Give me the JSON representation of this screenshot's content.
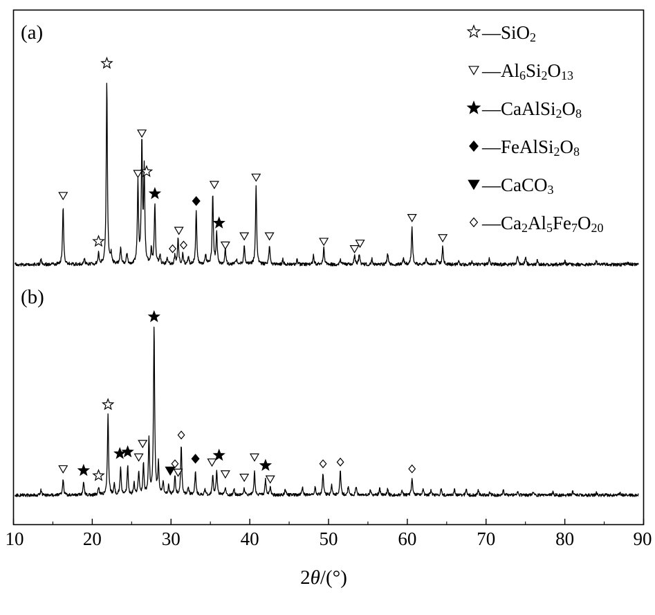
{
  "chart_data": {
    "type": "line",
    "xlabel_parts": [
      "2",
      "θ",
      "/(°)"
    ],
    "xlim": [
      10,
      90
    ],
    "xticks": [
      10,
      20,
      30,
      40,
      50,
      60,
      70,
      80,
      90
    ],
    "ylabel": "",
    "yticks_shown": false,
    "grid": false,
    "legend_position": "top-right",
    "legend": [
      {
        "id": "sio2",
        "marker": "open-star",
        "dash": "—",
        "parts": [
          [
            "Si",
            false
          ],
          [
            "O",
            false
          ],
          [
            "2",
            true
          ]
        ]
      },
      {
        "id": "al6si2o13",
        "marker": "open-triangle-down",
        "dash": "—",
        "parts": [
          [
            "Al",
            false
          ],
          [
            "6",
            true
          ],
          [
            "Si",
            false
          ],
          [
            "2",
            true
          ],
          [
            "O",
            false
          ],
          [
            "13",
            true
          ]
        ]
      },
      {
        "id": "caalsi2o8",
        "marker": "filled-star",
        "dash": "—",
        "parts": [
          [
            "CaAlSi",
            false
          ],
          [
            "2",
            true
          ],
          [
            "O",
            false
          ],
          [
            "8",
            true
          ]
        ]
      },
      {
        "id": "fealsi2o8",
        "marker": "filled-diamond",
        "dash": "—",
        "parts": [
          [
            "FeAlSi",
            false
          ],
          [
            "2",
            true
          ],
          [
            "O",
            false
          ],
          [
            "8",
            true
          ]
        ]
      },
      {
        "id": "caco3",
        "marker": "filled-triangle-down",
        "dash": "—",
        "parts": [
          [
            "CaCO",
            false
          ],
          [
            "3",
            true
          ]
        ]
      },
      {
        "id": "ca2al5fe7o20",
        "marker": "open-diamond",
        "dash": "—",
        "parts": [
          [
            "Ca",
            false
          ],
          [
            "2",
            true
          ],
          [
            "Al",
            false
          ],
          [
            "5",
            true
          ],
          [
            "Fe",
            false
          ],
          [
            "7",
            true
          ],
          [
            "O",
            false
          ],
          [
            "20",
            true
          ]
        ]
      }
    ],
    "series": [
      {
        "panel": "(a)",
        "peaks": [
          {
            "x": 13.5,
            "h": 0.03
          },
          {
            "x": 16.3,
            "h": 0.32
          },
          {
            "x": 19.0,
            "h": 0.03
          },
          {
            "x": 20.8,
            "h": 0.06
          },
          {
            "x": 21.85,
            "h": 1.0
          },
          {
            "x": 22.4,
            "h": 0.05
          },
          {
            "x": 23.6,
            "h": 0.09
          },
          {
            "x": 24.4,
            "h": 0.06
          },
          {
            "x": 25.8,
            "h": 0.44
          },
          {
            "x": 26.3,
            "h": 0.66
          },
          {
            "x": 26.6,
            "h": 0.5
          },
          {
            "x": 27.5,
            "h": 0.08
          },
          {
            "x": 27.95,
            "h": 0.33
          },
          {
            "x": 28.6,
            "h": 0.05
          },
          {
            "x": 29.5,
            "h": 0.04
          },
          {
            "x": 30.5,
            "h": 0.05
          },
          {
            "x": 30.9,
            "h": 0.14
          },
          {
            "x": 31.5,
            "h": 0.06
          },
          {
            "x": 32.2,
            "h": 0.04
          },
          {
            "x": 33.2,
            "h": 0.29
          },
          {
            "x": 34.4,
            "h": 0.05
          },
          {
            "x": 35.3,
            "h": 0.38
          },
          {
            "x": 35.8,
            "h": 0.17
          },
          {
            "x": 36.9,
            "h": 0.08
          },
          {
            "x": 38.3,
            "h": 0.03
          },
          {
            "x": 39.3,
            "h": 0.1
          },
          {
            "x": 40.8,
            "h": 0.42
          },
          {
            "x": 42.5,
            "h": 0.1
          },
          {
            "x": 44.2,
            "h": 0.03
          },
          {
            "x": 46.0,
            "h": 0.03
          },
          {
            "x": 48.1,
            "h": 0.05
          },
          {
            "x": 49.4,
            "h": 0.09
          },
          {
            "x": 51.5,
            "h": 0.03
          },
          {
            "x": 53.3,
            "h": 0.05
          },
          {
            "x": 53.9,
            "h": 0.06
          },
          {
            "x": 55.5,
            "h": 0.03
          },
          {
            "x": 57.5,
            "h": 0.06
          },
          {
            "x": 59.5,
            "h": 0.03
          },
          {
            "x": 60.6,
            "h": 0.2
          },
          {
            "x": 62.4,
            "h": 0.03
          },
          {
            "x": 63.8,
            "h": 0.03
          },
          {
            "x": 64.5,
            "h": 0.1
          },
          {
            "x": 66.5,
            "h": 0.02
          },
          {
            "x": 68.2,
            "h": 0.02
          },
          {
            "x": 70.4,
            "h": 0.03
          },
          {
            "x": 74.0,
            "h": 0.05
          },
          {
            "x": 75.0,
            "h": 0.04
          },
          {
            "x": 76.5,
            "h": 0.02
          },
          {
            "x": 80.0,
            "h": 0.02
          },
          {
            "x": 84.0,
            "h": 0.02
          },
          {
            "x": 88.0,
            "h": 0.01
          }
        ],
        "markers": [
          {
            "x": 21.85,
            "h": 1.1,
            "phase": "sio2"
          },
          {
            "x": 20.8,
            "h": 0.13,
            "phase": "sio2"
          },
          {
            "x": 26.9,
            "h": 0.51,
            "phase": "sio2"
          },
          {
            "x": 16.3,
            "h": 0.38,
            "phase": "al6si2o13"
          },
          {
            "x": 25.8,
            "h": 0.5,
            "phase": "al6si2o13"
          },
          {
            "x": 26.3,
            "h": 0.72,
            "phase": "al6si2o13"
          },
          {
            "x": 31.0,
            "h": 0.19,
            "phase": "al6si2o13"
          },
          {
            "x": 35.5,
            "h": 0.44,
            "phase": "al6si2o13"
          },
          {
            "x": 36.9,
            "h": 0.11,
            "phase": "al6si2o13"
          },
          {
            "x": 39.3,
            "h": 0.16,
            "phase": "al6si2o13"
          },
          {
            "x": 40.8,
            "h": 0.48,
            "phase": "al6si2o13"
          },
          {
            "x": 42.5,
            "h": 0.16,
            "phase": "al6si2o13"
          },
          {
            "x": 49.4,
            "h": 0.13,
            "phase": "al6si2o13"
          },
          {
            "x": 53.3,
            "h": 0.09,
            "phase": "al6si2o13"
          },
          {
            "x": 54.0,
            "h": 0.12,
            "phase": "al6si2o13"
          },
          {
            "x": 60.6,
            "h": 0.26,
            "phase": "al6si2o13"
          },
          {
            "x": 64.5,
            "h": 0.15,
            "phase": "al6si2o13"
          },
          {
            "x": 27.95,
            "h": 0.39,
            "phase": "caalsi2o8"
          },
          {
            "x": 36.1,
            "h": 0.23,
            "phase": "caalsi2o8"
          },
          {
            "x": 33.2,
            "h": 0.35,
            "phase": "fealsi2o8"
          },
          {
            "x": 30.2,
            "h": 0.09,
            "phase": "ca2al5fe7o20"
          },
          {
            "x": 31.6,
            "h": 0.11,
            "phase": "ca2al5fe7o20"
          }
        ]
      },
      {
        "panel": "(b)",
        "peaks": [
          {
            "x": 13.5,
            "h": 0.03
          },
          {
            "x": 16.3,
            "h": 0.1
          },
          {
            "x": 18.9,
            "h": 0.08
          },
          {
            "x": 20.8,
            "h": 0.05
          },
          {
            "x": 22.0,
            "h": 0.48
          },
          {
            "x": 22.8,
            "h": 0.06
          },
          {
            "x": 23.6,
            "h": 0.17
          },
          {
            "x": 24.5,
            "h": 0.17
          },
          {
            "x": 25.3,
            "h": 0.07
          },
          {
            "x": 25.9,
            "h": 0.14
          },
          {
            "x": 26.5,
            "h": 0.19
          },
          {
            "x": 27.2,
            "h": 0.33
          },
          {
            "x": 27.85,
            "h": 1.0
          },
          {
            "x": 28.4,
            "h": 0.18
          },
          {
            "x": 29.0,
            "h": 0.08
          },
          {
            "x": 29.7,
            "h": 0.06
          },
          {
            "x": 30.5,
            "h": 0.12
          },
          {
            "x": 31.3,
            "h": 0.3
          },
          {
            "x": 32.2,
            "h": 0.05
          },
          {
            "x": 33.1,
            "h": 0.14
          },
          {
            "x": 34.3,
            "h": 0.04
          },
          {
            "x": 35.3,
            "h": 0.12
          },
          {
            "x": 35.8,
            "h": 0.15
          },
          {
            "x": 36.9,
            "h": 0.05
          },
          {
            "x": 38.0,
            "h": 0.04
          },
          {
            "x": 39.3,
            "h": 0.04
          },
          {
            "x": 40.6,
            "h": 0.14
          },
          {
            "x": 42.0,
            "h": 0.09
          },
          {
            "x": 42.6,
            "h": 0.05
          },
          {
            "x": 44.5,
            "h": 0.04
          },
          {
            "x": 46.7,
            "h": 0.05
          },
          {
            "x": 48.3,
            "h": 0.05
          },
          {
            "x": 49.3,
            "h": 0.13
          },
          {
            "x": 50.4,
            "h": 0.06
          },
          {
            "x": 51.5,
            "h": 0.14
          },
          {
            "x": 52.5,
            "h": 0.05
          },
          {
            "x": 53.5,
            "h": 0.05
          },
          {
            "x": 55.3,
            "h": 0.03
          },
          {
            "x": 56.5,
            "h": 0.04
          },
          {
            "x": 57.5,
            "h": 0.04
          },
          {
            "x": 59.3,
            "h": 0.03
          },
          {
            "x": 60.6,
            "h": 0.1
          },
          {
            "x": 62.0,
            "h": 0.04
          },
          {
            "x": 63.0,
            "h": 0.03
          },
          {
            "x": 64.3,
            "h": 0.04
          },
          {
            "x": 66.0,
            "h": 0.03
          },
          {
            "x": 67.5,
            "h": 0.03
          },
          {
            "x": 69.0,
            "h": 0.03
          },
          {
            "x": 70.5,
            "h": 0.02
          },
          {
            "x": 72.2,
            "h": 0.03
          },
          {
            "x": 74.0,
            "h": 0.02
          },
          {
            "x": 76.0,
            "h": 0.02
          },
          {
            "x": 78.5,
            "h": 0.02
          },
          {
            "x": 81.0,
            "h": 0.02
          },
          {
            "x": 84.0,
            "h": 0.015
          },
          {
            "x": 87.0,
            "h": 0.015
          }
        ],
        "markers": [
          {
            "x": 27.85,
            "h": 1.06,
            "phase": "caalsi2o8"
          },
          {
            "x": 18.9,
            "h": 0.15,
            "phase": "caalsi2o8"
          },
          {
            "x": 23.5,
            "h": 0.25,
            "phase": "caalsi2o8"
          },
          {
            "x": 24.5,
            "h": 0.26,
            "phase": "caalsi2o8"
          },
          {
            "x": 36.1,
            "h": 0.24,
            "phase": "caalsi2o8"
          },
          {
            "x": 42.0,
            "h": 0.18,
            "phase": "caalsi2o8"
          },
          {
            "x": 22.0,
            "h": 0.54,
            "phase": "sio2"
          },
          {
            "x": 20.8,
            "h": 0.12,
            "phase": "sio2"
          },
          {
            "x": 16.3,
            "h": 0.16,
            "phase": "al6si2o13"
          },
          {
            "x": 25.9,
            "h": 0.23,
            "phase": "al6si2o13"
          },
          {
            "x": 26.4,
            "h": 0.31,
            "phase": "al6si2o13"
          },
          {
            "x": 30.9,
            "h": 0.14,
            "phase": "al6si2o13"
          },
          {
            "x": 35.2,
            "h": 0.2,
            "phase": "al6si2o13"
          },
          {
            "x": 36.9,
            "h": 0.13,
            "phase": "al6si2o13"
          },
          {
            "x": 39.3,
            "h": 0.11,
            "phase": "al6si2o13"
          },
          {
            "x": 40.6,
            "h": 0.23,
            "phase": "al6si2o13"
          },
          {
            "x": 42.6,
            "h": 0.1,
            "phase": "al6si2o13"
          },
          {
            "x": 29.9,
            "h": 0.15,
            "phase": "caco3"
          },
          {
            "x": 33.1,
            "h": 0.22,
            "phase": "fealsi2o8"
          },
          {
            "x": 30.5,
            "h": 0.19,
            "phase": "ca2al5fe7o20"
          },
          {
            "x": 31.3,
            "h": 0.36,
            "phase": "ca2al5fe7o20"
          },
          {
            "x": 49.3,
            "h": 0.19,
            "phase": "ca2al5fe7o20"
          },
          {
            "x": 51.5,
            "h": 0.2,
            "phase": "ca2al5fe7o20"
          },
          {
            "x": 60.6,
            "h": 0.16,
            "phase": "ca2al5fe7o20"
          }
        ]
      }
    ]
  }
}
